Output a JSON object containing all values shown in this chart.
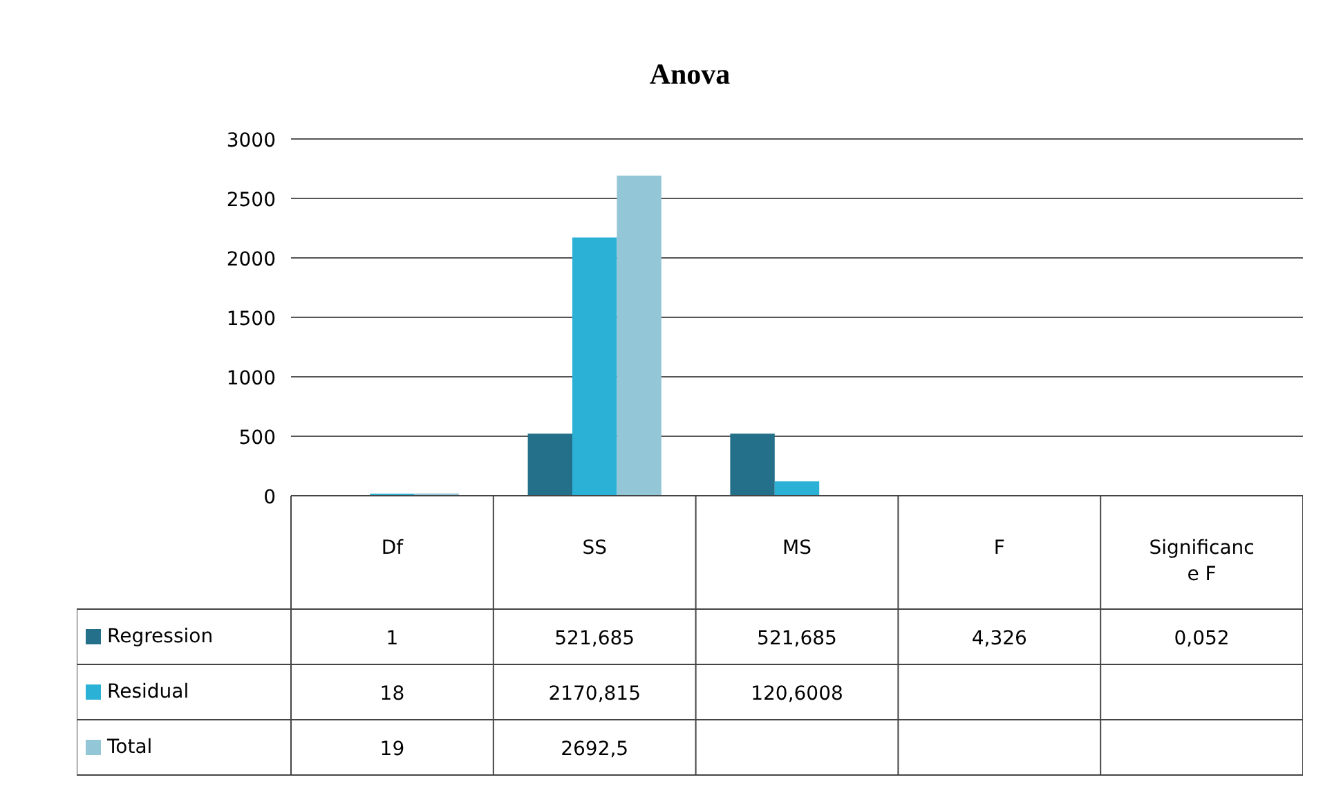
{
  "chart_data": {
    "type": "bar",
    "title": "Anova",
    "categories": [
      "Df",
      "SS",
      "MS",
      "F",
      "Significance F"
    ],
    "series": [
      {
        "name": "Regression",
        "color": "#24708a",
        "values": [
          1,
          521.685,
          521.685,
          4.326,
          0.052
        ],
        "value_labels": [
          "1",
          "521,685",
          "521,685",
          "4,326",
          "0,052"
        ]
      },
      {
        "name": "Residual",
        "color": "#2bb0d6",
        "values": [
          18,
          2170.815,
          120.6008,
          null,
          null
        ],
        "value_labels": [
          "18",
          "2170,815",
          "120,6008",
          null,
          null
        ]
      },
      {
        "name": "Total",
        "color": "#93c6d6",
        "values": [
          19,
          2692.5,
          null,
          null,
          null
        ],
        "value_labels": [
          "19",
          "2692,5",
          null,
          null,
          null
        ]
      }
    ],
    "ylim": [
      0,
      3000
    ],
    "yticks": [
      0,
      500,
      1000,
      1500,
      2000,
      2500,
      3000
    ],
    "grid": "y",
    "legend": "bottom left"
  }
}
